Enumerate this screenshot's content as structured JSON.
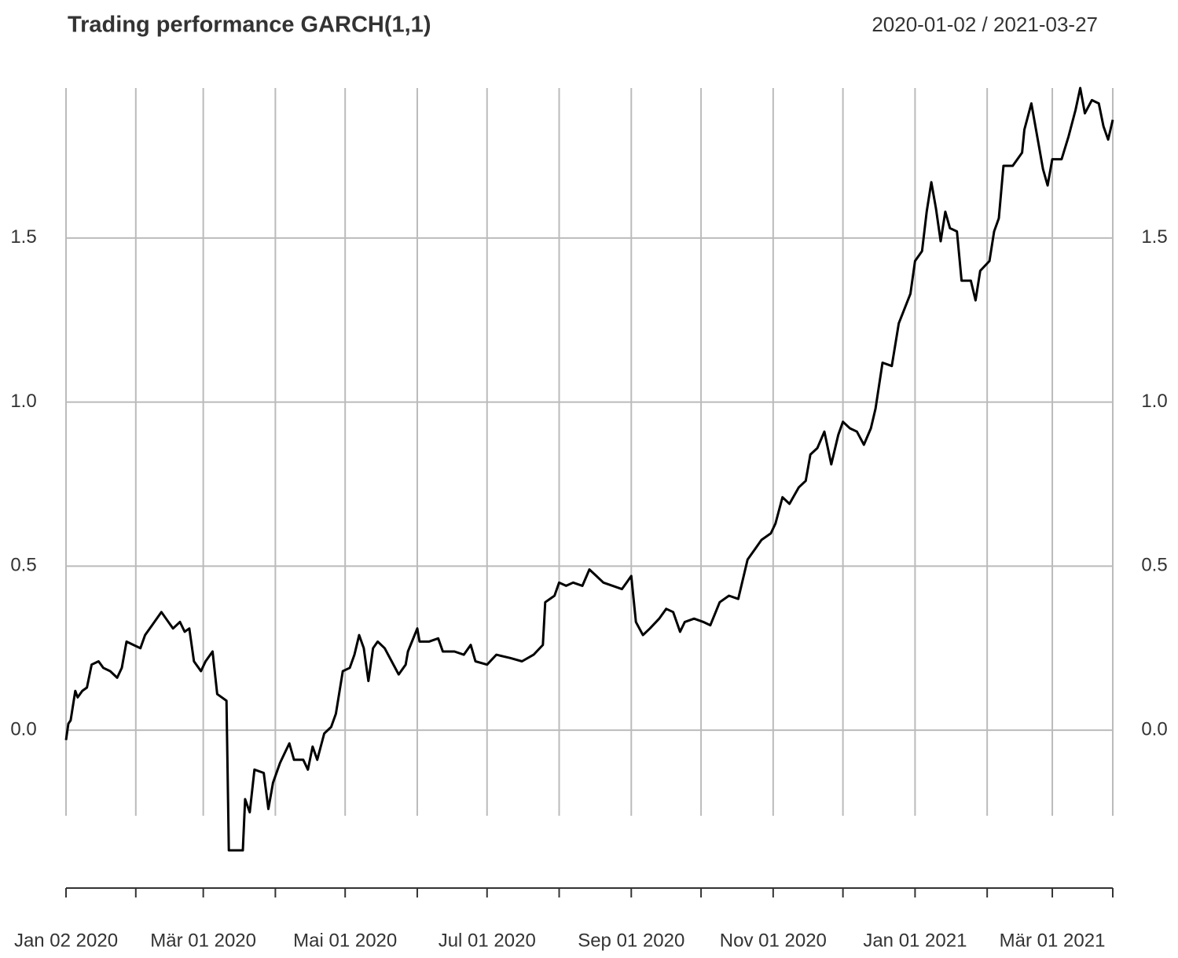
{
  "chart_data": {
    "type": "line",
    "title": "Trading performance GARCH(1,1)",
    "subtitle": "2020-01-02 / 2021-03-27",
    "x": [
      "2020-01-02",
      "2020-01-03",
      "2020-01-04",
      "2020-01-06",
      "2020-01-07",
      "2020-01-09",
      "2020-01-11",
      "2020-01-13",
      "2020-01-16",
      "2020-01-18",
      "2020-01-21",
      "2020-01-24",
      "2020-01-26",
      "2020-01-28",
      "2020-01-31",
      "2020-02-03",
      "2020-02-05",
      "2020-02-08",
      "2020-02-12",
      "2020-02-14",
      "2020-02-17",
      "2020-02-20",
      "2020-02-22",
      "2020-02-24",
      "2020-02-26",
      "2020-02-29",
      "2020-03-02",
      "2020-03-05",
      "2020-03-07",
      "2020-03-11",
      "2020-03-12",
      "2020-03-18",
      "2020-03-19",
      "2020-03-21",
      "2020-03-23",
      "2020-03-27",
      "2020-03-29",
      "2020-03-31",
      "2020-04-03",
      "2020-04-05",
      "2020-04-07",
      "2020-04-09",
      "2020-04-13",
      "2020-04-15",
      "2020-04-17",
      "2020-04-19",
      "2020-04-22",
      "2020-04-25",
      "2020-04-27",
      "2020-04-30",
      "2020-05-03",
      "2020-05-05",
      "2020-05-07",
      "2020-05-09",
      "2020-05-11",
      "2020-05-13",
      "2020-05-15",
      "2020-05-18",
      "2020-05-21",
      "2020-05-24",
      "2020-05-27",
      "2020-05-28",
      "2020-06-01",
      "2020-06-02",
      "2020-06-06",
      "2020-06-10",
      "2020-06-12",
      "2020-06-17",
      "2020-06-21",
      "2020-06-24",
      "2020-06-26",
      "2020-07-01",
      "2020-07-05",
      "2020-07-11",
      "2020-07-16",
      "2020-07-21",
      "2020-07-25",
      "2020-07-26",
      "2020-07-30",
      "2020-08-01",
      "2020-08-04",
      "2020-08-07",
      "2020-08-11",
      "2020-08-14",
      "2020-08-17",
      "2020-08-20",
      "2020-08-24",
      "2020-08-28",
      "2020-08-30",
      "2020-09-01",
      "2020-09-03",
      "2020-09-06",
      "2020-09-09",
      "2020-09-13",
      "2020-09-16",
      "2020-09-19",
      "2020-09-22",
      "2020-09-24",
      "2020-09-28",
      "2020-10-02",
      "2020-10-05",
      "2020-10-09",
      "2020-10-13",
      "2020-10-17",
      "2020-10-21",
      "2020-10-24",
      "2020-10-27",
      "2020-10-31",
      "2020-11-02",
      "2020-11-05",
      "2020-11-08",
      "2020-11-12",
      "2020-11-15",
      "2020-11-17",
      "2020-11-20",
      "2020-11-23",
      "2020-11-26",
      "2020-11-29",
      "2020-12-01",
      "2020-12-04",
      "2020-12-07",
      "2020-12-10",
      "2020-12-13",
      "2020-12-15",
      "2020-12-18",
      "2020-12-22",
      "2020-12-25",
      "2020-12-30",
      "2021-01-01",
      "2021-01-04",
      "2021-01-06",
      "2021-01-08",
      "2021-01-10",
      "2021-01-12",
      "2021-01-14",
      "2021-01-16",
      "2021-01-19",
      "2021-01-21",
      "2021-01-25",
      "2021-01-27",
      "2021-01-29",
      "2021-02-02",
      "2021-02-04",
      "2021-02-06",
      "2021-02-08",
      "2021-02-12",
      "2021-02-16",
      "2021-02-17",
      "2021-02-20",
      "2021-02-23",
      "2021-02-25",
      "2021-02-27",
      "2021-03-01",
      "2021-03-05",
      "2021-03-08",
      "2021-03-11",
      "2021-03-13",
      "2021-03-15",
      "2021-03-18",
      "2021-03-21",
      "2021-03-23",
      "2021-03-25",
      "2021-03-27"
    ],
    "series": [
      {
        "color": "#000000",
        "values": [
          -0.03,
          0.02,
          0.03,
          0.12,
          0.1,
          0.12,
          0.13,
          0.2,
          0.21,
          0.19,
          0.18,
          0.16,
          0.19,
          0.27,
          0.26,
          0.25,
          0.29,
          0.32,
          0.36,
          0.34,
          0.31,
          0.33,
          0.3,
          0.31,
          0.21,
          0.18,
          0.21,
          0.24,
          0.11,
          0.09,
          -0.366,
          -0.366,
          -0.21,
          -0.25,
          -0.12,
          -0.13,
          -0.24,
          -0.16,
          -0.1,
          -0.07,
          -0.04,
          -0.09,
          -0.09,
          -0.12,
          -0.05,
          -0.09,
          -0.01,
          0.01,
          0.05,
          0.18,
          0.19,
          0.23,
          0.29,
          0.25,
          0.15,
          0.25,
          0.27,
          0.25,
          0.21,
          0.17,
          0.2,
          0.24,
          0.31,
          0.27,
          0.27,
          0.28,
          0.24,
          0.24,
          0.23,
          0.26,
          0.21,
          0.2,
          0.23,
          0.22,
          0.21,
          0.23,
          0.26,
          0.39,
          0.41,
          0.45,
          0.44,
          0.45,
          0.44,
          0.49,
          0.47,
          0.45,
          0.44,
          0.43,
          0.45,
          0.47,
          0.33,
          0.29,
          0.31,
          0.34,
          0.37,
          0.36,
          0.3,
          0.33,
          0.34,
          0.33,
          0.32,
          0.39,
          0.41,
          0.4,
          0.52,
          0.55,
          0.58,
          0.6,
          0.63,
          0.71,
          0.69,
          0.74,
          0.76,
          0.84,
          0.86,
          0.91,
          0.81,
          0.9,
          0.94,
          0.92,
          0.91,
          0.87,
          0.92,
          0.98,
          1.12,
          1.11,
          1.24,
          1.33,
          1.43,
          1.46,
          1.58,
          1.67,
          1.59,
          1.49,
          1.58,
          1.53,
          1.52,
          1.37,
          1.37,
          1.31,
          1.4,
          1.43,
          1.52,
          1.56,
          1.72,
          1.72,
          1.76,
          1.83,
          1.91,
          1.79,
          1.71,
          1.66,
          1.74,
          1.74,
          1.81,
          1.89,
          1.957,
          1.88,
          1.92,
          1.91,
          1.84,
          1.8,
          1.86
        ]
      }
    ],
    "xlim": [
      "2020-01-02",
      "2021-03-27"
    ],
    "xticks": [
      {
        "value": "2020-01-02",
        "label": "Jan 02 2020"
      },
      {
        "value": "2020-02-01",
        "label": null
      },
      {
        "value": "2020-03-01",
        "label": "Mär 01 2020"
      },
      {
        "value": "2020-04-01",
        "label": null
      },
      {
        "value": "2020-05-01",
        "label": "Mai 01 2020"
      },
      {
        "value": "2020-06-01",
        "label": null
      },
      {
        "value": "2020-07-01",
        "label": "Jul 01 2020"
      },
      {
        "value": "2020-08-01",
        "label": null
      },
      {
        "value": "2020-09-01",
        "label": "Sep 01 2020"
      },
      {
        "value": "2020-10-01",
        "label": null
      },
      {
        "value": "2020-11-01",
        "label": "Nov 01 2020"
      },
      {
        "value": "2020-12-01",
        "label": null
      },
      {
        "value": "2021-01-01",
        "label": "Jan 01 2021"
      },
      {
        "value": "2021-02-01",
        "label": null
      },
      {
        "value": "2021-03-01",
        "label": "Mär 01 2021"
      },
      {
        "value": "2021-03-27",
        "label": null
      }
    ],
    "ylim": [
      -0.366,
      1.957
    ],
    "yticks": [
      {
        "value": 0,
        "label": "0.0"
      },
      {
        "value": 0.5,
        "label": "0.5"
      },
      {
        "value": 1,
        "label": "1.0"
      },
      {
        "value": 1.5,
        "label": "1.5"
      }
    ],
    "grid": true
  }
}
